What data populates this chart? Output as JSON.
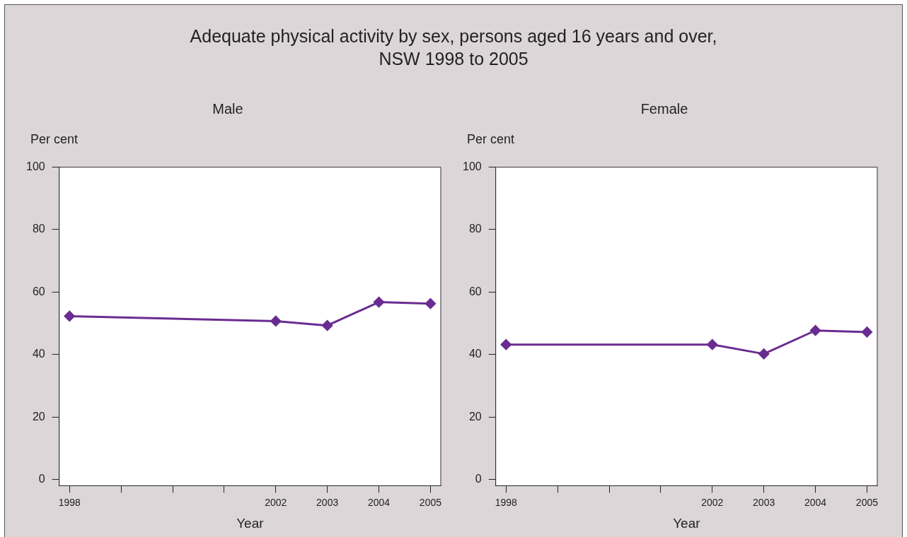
{
  "chart_data": [
    {
      "type": "line",
      "title": "Adequate physical activity by sex, persons aged 16 years and over,\nNSW 1998 to 2005",
      "subtitle": "Male",
      "xlabel": "Year",
      "ylabel": "Per cent",
      "marker": "diamond",
      "legend": false,
      "grid": false,
      "x": [
        1998,
        2002,
        2003,
        2004,
        2005
      ],
      "series": [
        {
          "color": "#6a2c91",
          "values": [
            52.3,
            50.7,
            49.3,
            56.8,
            56.3
          ]
        }
      ],
      "xlim": [
        1997.8,
        2005.2
      ],
      "xticks": [
        1998,
        {
          "value": 1999,
          "label": null
        },
        {
          "value": 2000,
          "label": null
        },
        {
          "value": 2001,
          "label": null
        },
        2002,
        2003,
        2004,
        2005
      ],
      "ylim": [
        -2,
        100
      ],
      "yticks": [
        0,
        20,
        40,
        60,
        80,
        100
      ]
    },
    {
      "type": "line",
      "title": "Female",
      "xlabel": "Year",
      "ylabel": "Per cent",
      "marker": "diamond",
      "legend": false,
      "grid": false,
      "x": [
        1998,
        2002,
        2003,
        2004,
        2005
      ],
      "series": [
        {
          "color": "#6a2c91",
          "values": [
            43.2,
            43.2,
            40.2,
            47.7,
            47.2
          ]
        }
      ],
      "xlim": [
        1997.8,
        2005.2
      ],
      "xticks": [
        1998,
        {
          "value": 1999,
          "label": null
        },
        {
          "value": 2000,
          "label": null
        },
        {
          "value": 2001,
          "label": null
        },
        2002,
        2003,
        2004,
        2005
      ],
      "ylim": [
        -2,
        100
      ],
      "yticks": [
        0,
        20,
        40,
        60,
        80,
        100
      ]
    }
  ]
}
